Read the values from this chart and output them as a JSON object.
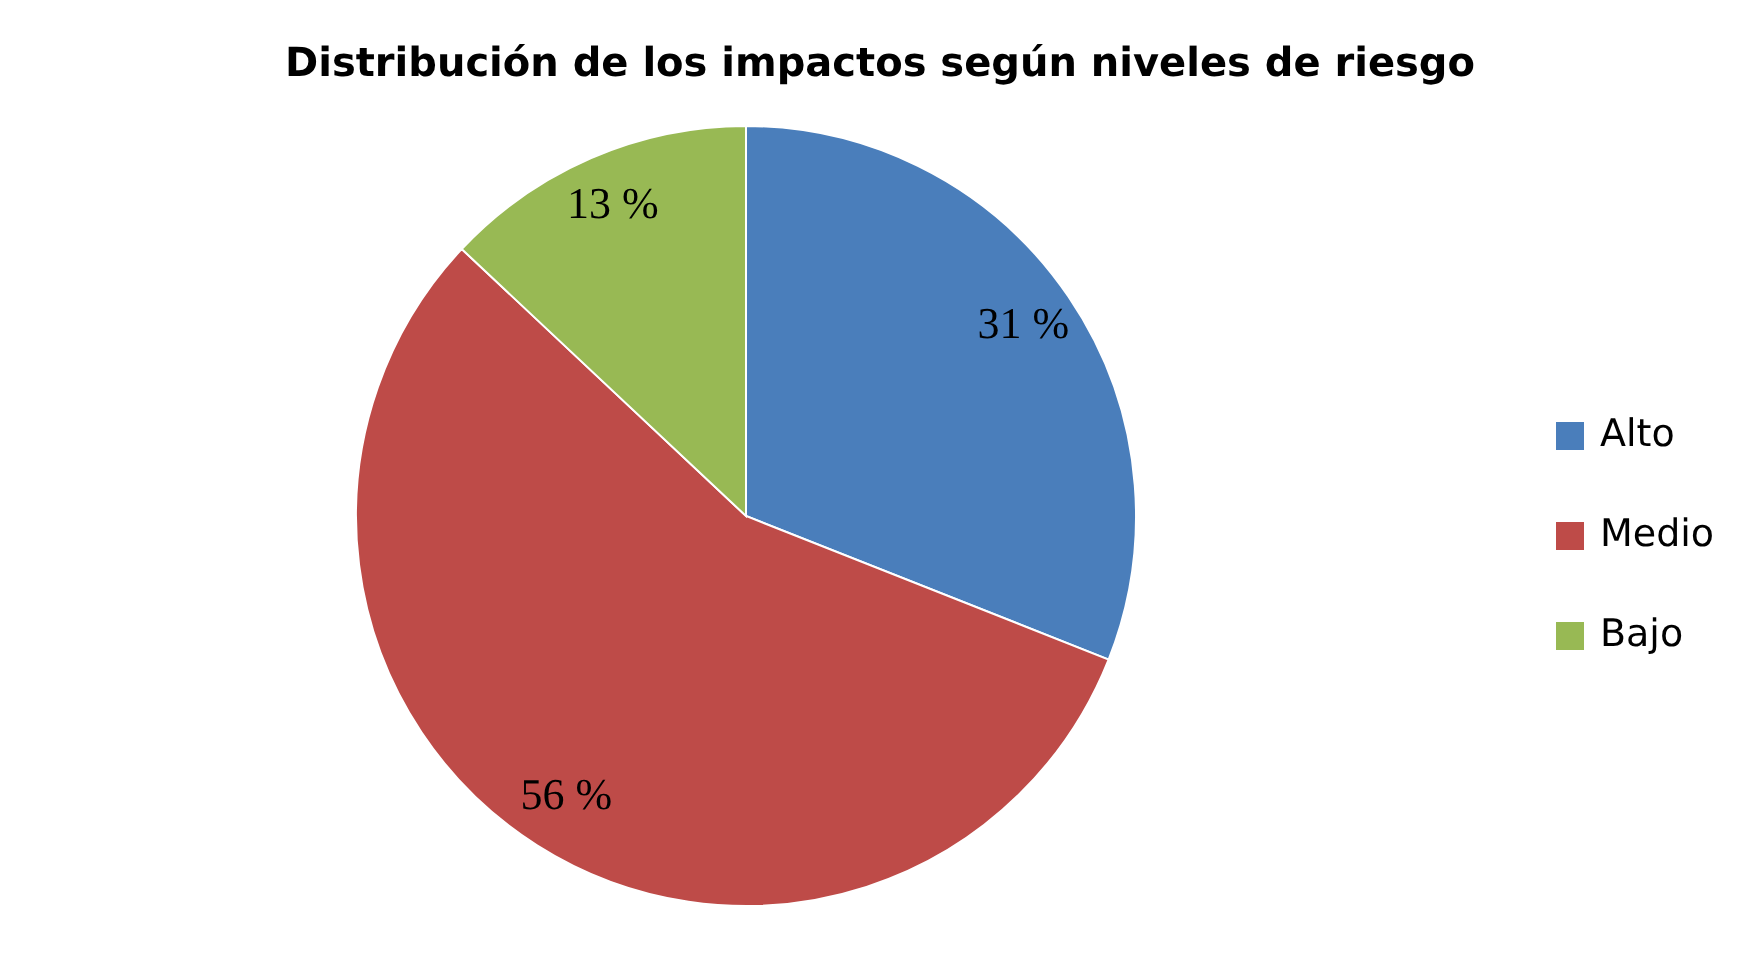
{
  "chart_data": {
    "type": "pie",
    "title": "Distribución de los impactos según niveles de riesgo",
    "categories": [
      "Alto",
      "Medio",
      "Bajo"
    ],
    "values": [
      31,
      56,
      13
    ],
    "colors": [
      "#4a7ebb",
      "#be4b48",
      "#98b954"
    ],
    "value_labels": [
      "31 %",
      "56 %",
      "13 %"
    ],
    "legend": "right"
  }
}
